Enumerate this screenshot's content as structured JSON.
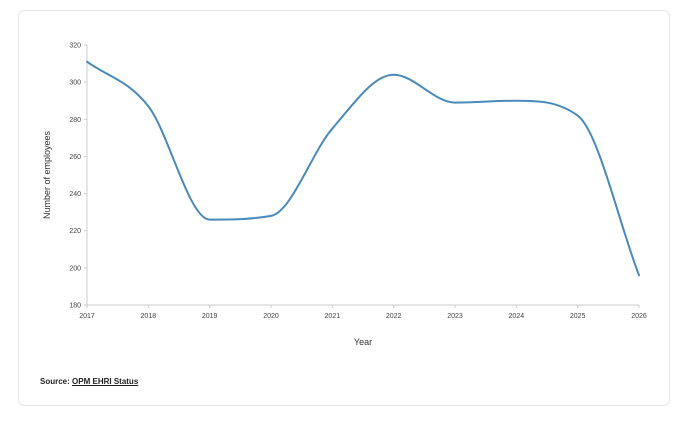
{
  "colors": {
    "line": "#4a8ab8",
    "axis": "#cccccc",
    "text": "#444444"
  },
  "source": {
    "label": "Source:",
    "link_text": "OPM EHRI Status"
  },
  "chart_data": {
    "type": "line",
    "xlabel": "Year",
    "ylabel": "Number of employees",
    "ylim": [
      180,
      320
    ],
    "yticks": [
      180,
      200,
      220,
      240,
      260,
      280,
      300,
      320
    ],
    "grid": false,
    "categories": [
      "2017",
      "2018",
      "2019",
      "2020",
      "2021",
      "2022",
      "2023",
      "2024",
      "2025",
      "2026"
    ],
    "series": [
      {
        "values": [
          311,
          287,
          226,
          228,
          275,
          304,
          289,
          290,
          282,
          196
        ]
      }
    ]
  }
}
